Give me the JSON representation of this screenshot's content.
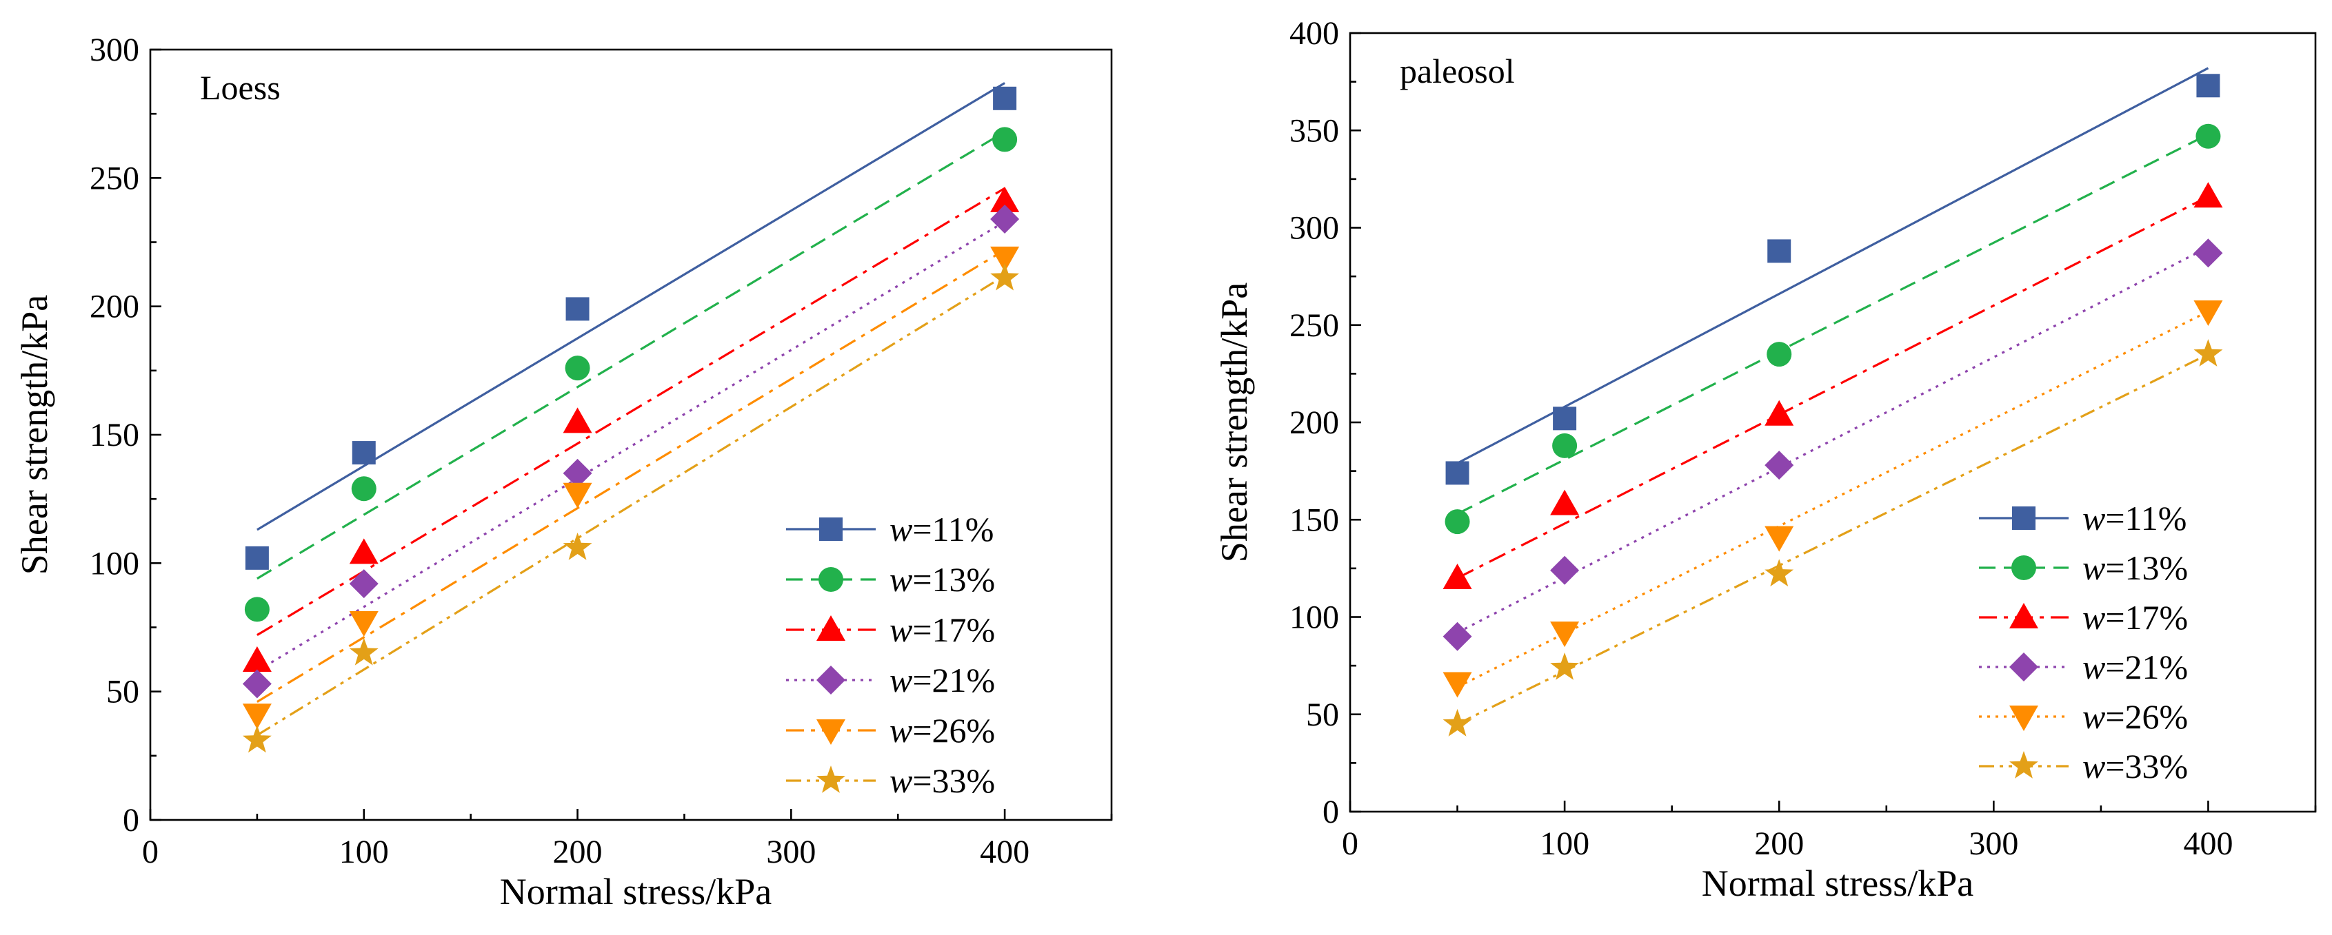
{
  "chart_data": [
    {
      "type": "scatter",
      "title": "Loess",
      "xlabel": "Normal stress/kPa",
      "ylabel": "Shear strength/kPa",
      "xlim": [
        0,
        450
      ],
      "ylim": [
        0,
        300
      ],
      "xticks": [
        0,
        100,
        200,
        300,
        400
      ],
      "yticks": [
        0,
        50,
        100,
        150,
        200,
        250,
        300
      ],
      "legend_position": "bottom-right",
      "grid": false,
      "x": [
        50,
        100,
        200,
        400
      ],
      "series": [
        {
          "name": "=11%",
          "legend_var": "w",
          "marker": "square",
          "line_style": "solid",
          "color": "#3F5FA0",
          "values": [
            102,
            143,
            199,
            281
          ],
          "fit": [
            113,
            287
          ]
        },
        {
          "name": "=13%",
          "legend_var": "w",
          "marker": "circle",
          "line_style": "dash",
          "color": "#22B14C",
          "values": [
            82,
            129,
            176,
            265
          ],
          "fit": [
            94,
            268
          ]
        },
        {
          "name": "=17%",
          "legend_var": "w",
          "marker": "triangle-up",
          "line_style": "dashdot",
          "color": "#FF0000",
          "values": [
            62,
            104,
            155,
            241
          ],
          "fit": [
            72,
            246
          ]
        },
        {
          "name": "=21%",
          "legend_var": "w",
          "marker": "diamond",
          "line_style": "dot",
          "color": "#8E44AD",
          "values": [
            53,
            92,
            135,
            234
          ],
          "fit": [
            58,
            233
          ]
        },
        {
          "name": "=26%",
          "legend_var": "w",
          "marker": "triangle-down",
          "line_style": "dashdot",
          "color": "#FF8C00",
          "values": [
            41,
            77,
            127,
            219
          ],
          "fit": [
            46,
            222
          ]
        },
        {
          "name": "=33%",
          "legend_var": "w",
          "marker": "star",
          "line_style": "dashdotdot",
          "color": "#E3A018",
          "values": [
            31,
            65,
            106,
            211
          ],
          "fit": [
            33,
            212
          ]
        }
      ]
    },
    {
      "type": "scatter",
      "title": "paleosol",
      "xlabel": "Normal stress/kPa",
      "ylabel": "Shear strength/kPa",
      "xlim": [
        0,
        450
      ],
      "ylim": [
        0,
        400
      ],
      "xticks": [
        0,
        100,
        200,
        300,
        400
      ],
      "yticks": [
        0,
        50,
        100,
        150,
        200,
        250,
        300,
        350,
        400
      ],
      "legend_position": "bottom-right",
      "grid": false,
      "x": [
        50,
        100,
        200,
        400
      ],
      "series": [
        {
          "name": "=11%",
          "legend_var": "w",
          "marker": "square",
          "line_style": "solid",
          "color": "#3F5FA0",
          "values": [
            174,
            202,
            288,
            373
          ],
          "fit": [
            179,
            382
          ]
        },
        {
          "name": "=13%",
          "legend_var": "w",
          "marker": "circle",
          "line_style": "dash",
          "color": "#22B14C",
          "values": [
            149,
            188,
            235,
            347
          ],
          "fit": [
            153,
            348
          ]
        },
        {
          "name": "=17%",
          "legend_var": "w",
          "marker": "triangle-up",
          "line_style": "dashdot",
          "color": "#FF0000",
          "values": [
            120,
            158,
            204,
            316
          ],
          "fit": [
            120,
            316
          ]
        },
        {
          "name": "=21%",
          "legend_var": "w",
          "marker": "diamond",
          "line_style": "dot",
          "color": "#8E44AD",
          "values": [
            90,
            124,
            178,
            287
          ],
          "fit": [
            92,
            290
          ]
        },
        {
          "name": "=26%",
          "legend_var": "w",
          "marker": "triangle-down",
          "line_style": "dot",
          "color": "#FF8C00",
          "values": [
            66,
            92,
            141,
            257
          ],
          "fit": [
            64,
            257
          ]
        },
        {
          "name": "=33%",
          "legend_var": "w",
          "marker": "star",
          "line_style": "dashdotdot",
          "color": "#E3A018",
          "values": [
            45,
            74,
            122,
            235
          ],
          "fit": [
            45,
            235
          ]
        }
      ]
    }
  ]
}
